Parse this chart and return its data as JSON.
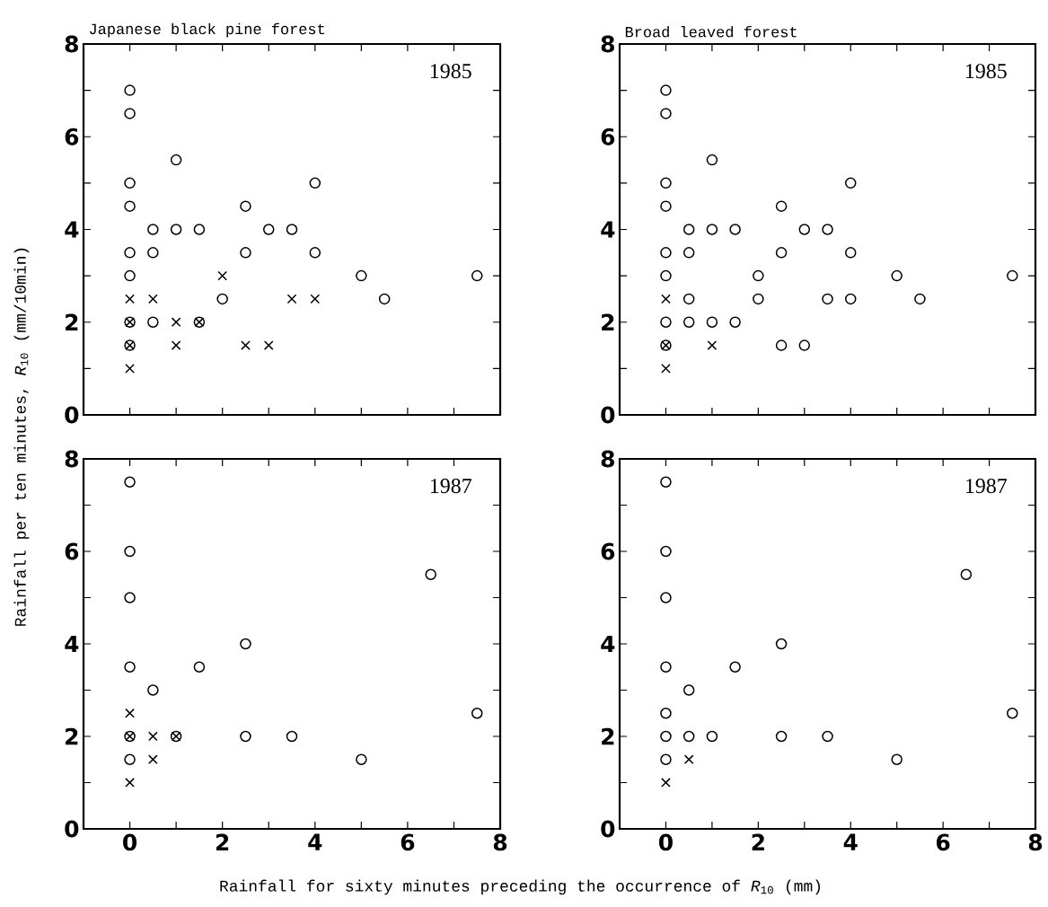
{
  "chart_data": [
    {
      "type": "scatter",
      "title": "Japanese black pine forest",
      "ylabel": "Rainfall per ten minutes, *R*$_{10}$ (mm/10min)",
      "annotations": [
        "1985"
      ],
      "xlim": [
        -1,
        8
      ],
      "ylim": [
        0,
        8
      ],
      "xticks": [
        0,
        {
          "value": 1,
          "label": null
        },
        2,
        {
          "value": 3,
          "label": null
        },
        4,
        {
          "value": 5,
          "label": null
        },
        6,
        {
          "value": 7,
          "label": null
        },
        8
      ],
      "yticks": [
        0,
        {
          "value": 1,
          "label": null
        },
        2,
        {
          "value": 3,
          "label": null
        },
        4,
        {
          "value": 5,
          "label": null
        },
        6,
        {
          "value": 7,
          "label": null
        },
        8
      ],
      "tick_labels": "y",
      "series": [
        {
          "color": "#000000",
          "marker": "circle",
          "x": [
            0,
            0,
            0,
            0,
            0,
            0,
            0,
            0,
            0.5,
            0.5,
            0.5,
            1,
            1,
            1.5,
            1.5,
            2,
            2.5,
            2.5,
            3,
            3.5,
            4,
            4,
            5,
            5.5,
            7.5
          ],
          "values": [
            7,
            6.5,
            5,
            4.5,
            3.5,
            3,
            2,
            1.5,
            4,
            3.5,
            2,
            5.5,
            4,
            4,
            2,
            2.5,
            4.5,
            3.5,
            4,
            4,
            5,
            3.5,
            3,
            2.5,
            3
          ]
        },
        {
          "color": "#000000",
          "marker": "cross",
          "x": [
            0,
            0,
            0,
            0,
            0.5,
            1,
            1,
            1.5,
            2,
            2.5,
            3,
            3.5,
            4
          ],
          "values": [
            2.5,
            2,
            1.5,
            1,
            2.5,
            2,
            1.5,
            2,
            3,
            1.5,
            1.5,
            2.5,
            2.5
          ]
        }
      ]
    },
    {
      "type": "scatter",
      "title": "Broad leaved forest",
      "annotations": [
        "1985"
      ],
      "xlim": [
        -1,
        8
      ],
      "ylim": [
        0,
        8
      ],
      "xticks": [
        0,
        {
          "value": 1,
          "label": null
        },
        2,
        {
          "value": 3,
          "label": null
        },
        4,
        {
          "value": 5,
          "label": null
        },
        6,
        {
          "value": 7,
          "label": null
        },
        8
      ],
      "yticks": [
        0,
        {
          "value": 1,
          "label": null
        },
        2,
        {
          "value": 3,
          "label": null
        },
        4,
        {
          "value": 5,
          "label": null
        },
        6,
        {
          "value": 7,
          "label": null
        },
        8
      ],
      "tick_labels": "y",
      "series": [
        {
          "color": "#000000",
          "marker": "circle",
          "x": [
            0,
            0,
            1,
            0,
            4,
            0,
            2.5,
            0.5,
            1,
            1.5,
            3,
            3.5,
            0,
            0.5,
            2.5,
            4,
            0,
            2,
            5,
            7.5,
            0.5,
            2,
            3.5,
            4,
            5.5,
            0,
            0.5,
            1,
            1.5,
            0,
            2.5,
            3
          ],
          "values": [
            7,
            6.5,
            5.5,
            5,
            5,
            4.5,
            4.5,
            4,
            4,
            4,
            4,
            4,
            3.5,
            3.5,
            3.5,
            3.5,
            3,
            3,
            3,
            3,
            2.5,
            2.5,
            2.5,
            2.5,
            2.5,
            2,
            2,
            2,
            2,
            1.5,
            1.5,
            1.5
          ]
        },
        {
          "color": "#000000",
          "marker": "cross",
          "x": [
            0,
            0,
            1,
            0
          ],
          "values": [
            2.5,
            1.5,
            1.5,
            1
          ]
        }
      ]
    },
    {
      "type": "scatter",
      "xlabel": "Rainfall for sixty minutes preceding the occurrence of *R*$_{10}$ (mm)",
      "annotations": [
        "1987"
      ],
      "xlim": [
        -1,
        8
      ],
      "ylim": [
        0,
        8
      ],
      "xticks": [
        0,
        {
          "value": 1,
          "label": null
        },
        2,
        {
          "value": 3,
          "label": null
        },
        4,
        {
          "value": 5,
          "label": null
        },
        6,
        {
          "value": 7,
          "label": null
        },
        8
      ],
      "yticks": [
        0,
        {
          "value": 1,
          "label": null
        },
        2,
        {
          "value": 3,
          "label": null
        },
        4,
        {
          "value": 5,
          "label": null
        },
        6,
        {
          "value": 7,
          "label": null
        },
        8
      ],
      "series": [
        {
          "color": "#000000",
          "marker": "circle",
          "x": [
            0,
            0,
            0,
            2.5,
            0,
            1.5,
            0.5,
            0,
            1,
            2.5,
            3.5,
            0,
            5,
            6.5,
            7.5
          ],
          "values": [
            7.5,
            6,
            5,
            4,
            3.5,
            3.5,
            3,
            2,
            2,
            2,
            2,
            1.5,
            1.5,
            5.5,
            2.5
          ]
        },
        {
          "color": "#000000",
          "marker": "cross",
          "x": [
            0,
            0,
            0.5,
            1,
            0.5,
            0
          ],
          "values": [
            2.5,
            2,
            2,
            2,
            1.5,
            1
          ]
        }
      ]
    },
    {
      "type": "scatter",
      "annotations": [
        "1987"
      ],
      "xlim": [
        -1,
        8
      ],
      "ylim": [
        0,
        8
      ],
      "xticks": [
        0,
        {
          "value": 1,
          "label": null
        },
        2,
        {
          "value": 3,
          "label": null
        },
        4,
        {
          "value": 5,
          "label": null
        },
        6,
        {
          "value": 7,
          "label": null
        },
        8
      ],
      "yticks": [
        0,
        {
          "value": 1,
          "label": null
        },
        2,
        {
          "value": 3,
          "label": null
        },
        4,
        {
          "value": 5,
          "label": null
        },
        6,
        {
          "value": 7,
          "label": null
        },
        8
      ],
      "series": [
        {
          "color": "#000000",
          "marker": "circle",
          "x": [
            0,
            0,
            0,
            2.5,
            0,
            1.5,
            0.5,
            0,
            7.5,
            0,
            0.5,
            1,
            2.5,
            3.5,
            0,
            5,
            6.5
          ],
          "values": [
            7.5,
            6,
            5,
            4,
            3.5,
            3.5,
            3,
            2.5,
            2.5,
            2,
            2,
            2,
            2,
            2,
            1.5,
            1.5,
            5.5
          ]
        },
        {
          "color": "#000000",
          "marker": "cross",
          "x": [
            0.5,
            0
          ],
          "values": [
            1.5,
            1
          ]
        }
      ]
    }
  ]
}
